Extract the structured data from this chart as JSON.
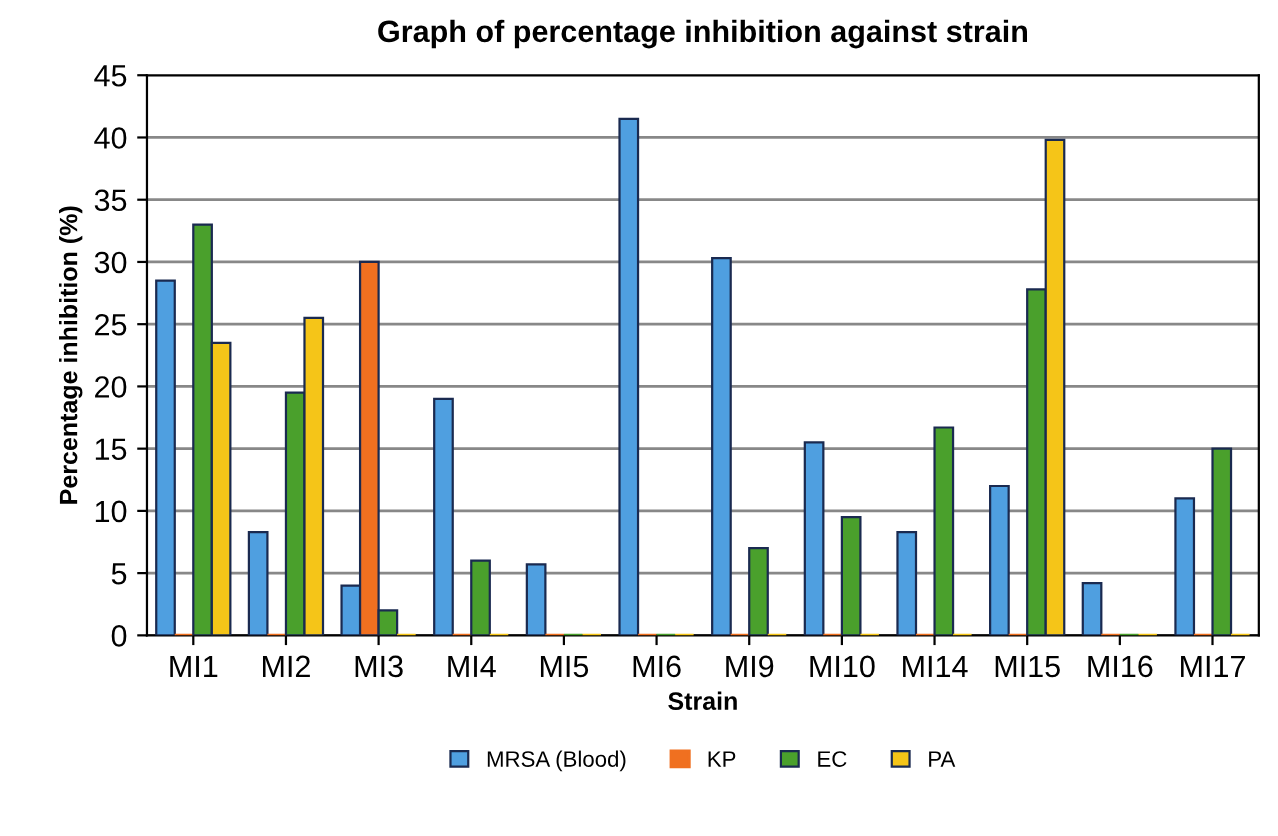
{
  "chart_data": {
    "type": "bar",
    "title": "Graph of percentage inhibition against strain",
    "xlabel": "Strain",
    "ylabel": "Percentage inhibition (%)",
    "categories": [
      "MI1",
      "MI2",
      "MI3",
      "MI4",
      "MI5",
      "MI6",
      "MI9",
      "MI10",
      "MI14",
      "MI15",
      "MI16",
      "MI17"
    ],
    "series": [
      {
        "name": "MRSA (Blood)",
        "color": "#4f9fe0",
        "values": [
          28.5,
          8.3,
          4,
          19,
          5.7,
          41.5,
          30.3,
          15.5,
          8.3,
          12,
          4.2,
          11
        ]
      },
      {
        "name": "KP",
        "color": "#f07020",
        "values": [
          0,
          0,
          30,
          0,
          0,
          0,
          0,
          0,
          0,
          0,
          0,
          0
        ]
      },
      {
        "name": "EC",
        "color": "#4aa02c",
        "values": [
          33,
          19.5,
          2,
          6,
          0,
          0,
          7,
          9.5,
          16.7,
          27.8,
          0,
          15
        ]
      },
      {
        "name": "PA",
        "color": "#f5c518",
        "values": [
          23.5,
          25.5,
          0,
          0,
          0,
          0,
          0,
          0,
          0,
          39.8,
          0,
          0
        ]
      }
    ],
    "ylim": [
      0,
      45
    ],
    "yticks": [
      0,
      5,
      10,
      15,
      20,
      25,
      30,
      35,
      40,
      45
    ],
    "grid": "y",
    "legend": "bottom"
  }
}
